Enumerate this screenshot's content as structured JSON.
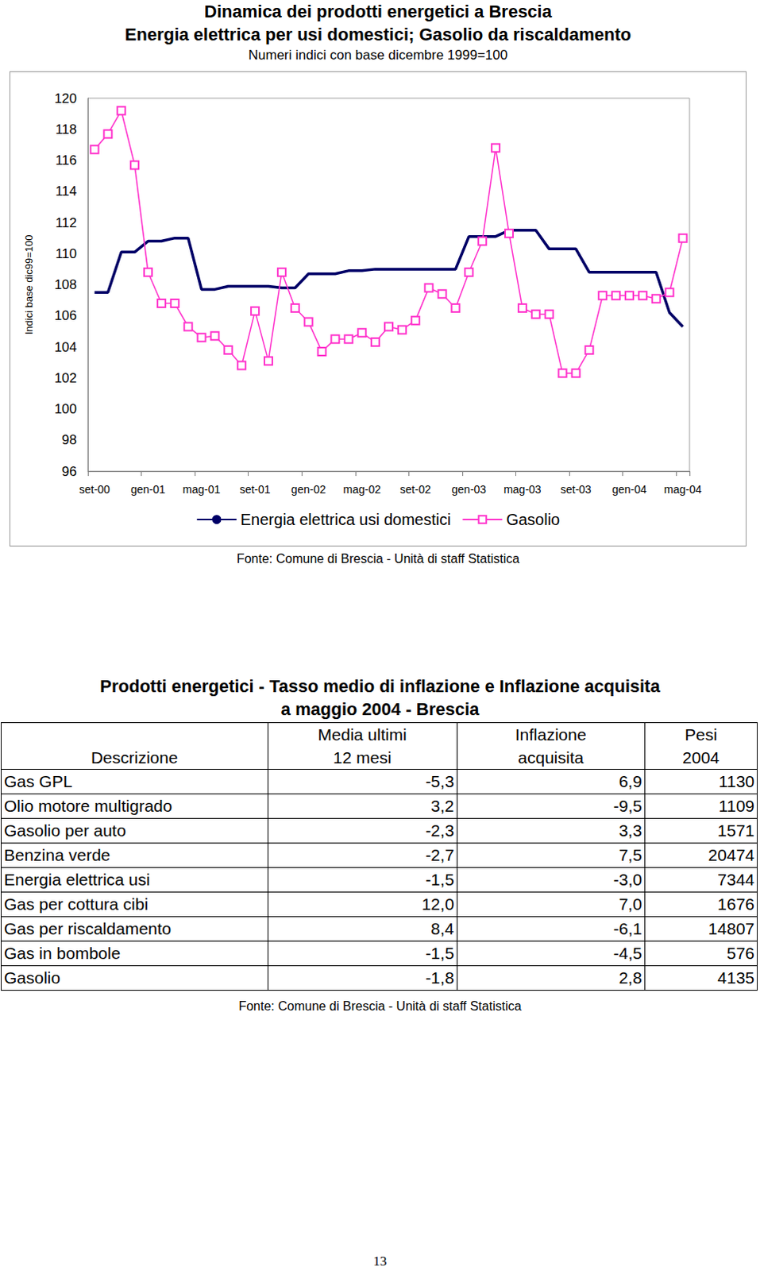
{
  "chart_data": {
    "type": "line",
    "title": [
      "Dinamica dei prodotti energetici a Brescia",
      "Energia elettrica per usi domestici; Gasolio da riscaldamento"
    ],
    "subtitle": "Numeri indici con base dicembre 1999=100",
    "y_label": "Indici base dic99=100",
    "source": "Fonte: Comune di Brescia - Unità di staff Statistica",
    "categories": [
      "set-00",
      null,
      null,
      null,
      "gen-01",
      null,
      null,
      null,
      "mag-01",
      null,
      null,
      null,
      "set-01",
      null,
      null,
      null,
      "gen-02",
      null,
      null,
      null,
      "mag-02",
      null,
      null,
      null,
      "set-02",
      null,
      null,
      null,
      "gen-03",
      null,
      null,
      null,
      "mag-03",
      null,
      null,
      null,
      "set-03",
      null,
      null,
      null,
      "gen-04",
      null,
      null,
      null,
      "mag-04"
    ],
    "series": [
      {
        "name": "Energia elettrica usi domestici",
        "color": "#000066",
        "marker": "none",
        "line_style": "solid",
        "values": [
          107.5,
          107.5,
          110.1,
          110.1,
          110.8,
          110.8,
          111.0,
          111.0,
          107.7,
          107.7,
          107.9,
          107.9,
          107.9,
          107.9,
          107.8,
          107.8,
          108.7,
          108.7,
          108.7,
          108.9,
          108.9,
          109.0,
          109.0,
          109.0,
          109.0,
          109.0,
          109.0,
          109.0,
          111.1,
          111.1,
          111.1,
          111.5,
          111.5,
          111.5,
          110.3,
          110.3,
          110.3,
          108.8,
          108.8,
          108.8,
          108.8,
          108.8,
          108.8,
          106.2,
          105.3
        ]
      },
      {
        "name": "Gasolio",
        "color": "#FF33CC",
        "marker": "square",
        "line_style": "solid",
        "values": [
          116.7,
          117.7,
          119.2,
          115.7,
          108.8,
          106.8,
          106.8,
          105.3,
          104.6,
          104.7,
          103.8,
          102.8,
          106.3,
          103.1,
          108.8,
          106.5,
          105.6,
          103.7,
          104.5,
          104.5,
          104.9,
          104.3,
          105.3,
          105.1,
          105.7,
          107.8,
          107.4,
          106.5,
          108.8,
          110.8,
          116.8,
          111.3,
          106.5,
          106.1,
          106.1,
          102.3,
          102.3,
          103.8,
          107.3,
          107.3,
          107.3,
          107.3,
          107.1,
          107.5,
          111.0
        ]
      }
    ],
    "ylim": [
      96,
      120
    ],
    "yticks": [
      96,
      98,
      100,
      102,
      104,
      106,
      108,
      110,
      112,
      114,
      116,
      118,
      120
    ],
    "grid": false,
    "legend": "bottom"
  },
  "table": {
    "title": [
      "Prodotti energetici - Tasso medio di inflazione e Inflazione acquisita",
      "a maggio 2004 - Brescia"
    ],
    "header": [
      [
        "Descrizione"
      ],
      [
        "Media ultimi",
        "12 mesi"
      ],
      [
        "Inflazione",
        "acquisita"
      ],
      [
        "Pesi",
        "2004"
      ]
    ],
    "rows": [
      [
        "Gas GPL",
        "-5,3",
        "6,9",
        "1130"
      ],
      [
        "Olio motore multigrado",
        "3,2",
        "-9,5",
        "1109"
      ],
      [
        "Gasolio per auto",
        "-2,3",
        "3,3",
        "1571"
      ],
      [
        "Benzina verde",
        "-2,7",
        "7,5",
        "20474"
      ],
      [
        "Energia elettrica usi",
        "-1,5",
        "-3,0",
        "7344"
      ],
      [
        "Gas per cottura cibi",
        "12,0",
        "7,0",
        "1676"
      ],
      [
        "Gas per riscaldamento",
        "8,4",
        "-6,1",
        "14807"
      ],
      [
        "Gas in bombole",
        "-1,5",
        "-4,5",
        "576"
      ],
      [
        "Gasolio",
        "-1,8",
        "2,8",
        "4135"
      ]
    ],
    "source": "Fonte: Comune di Brescia - Unità di staff Statistica"
  },
  "page_number": "13"
}
